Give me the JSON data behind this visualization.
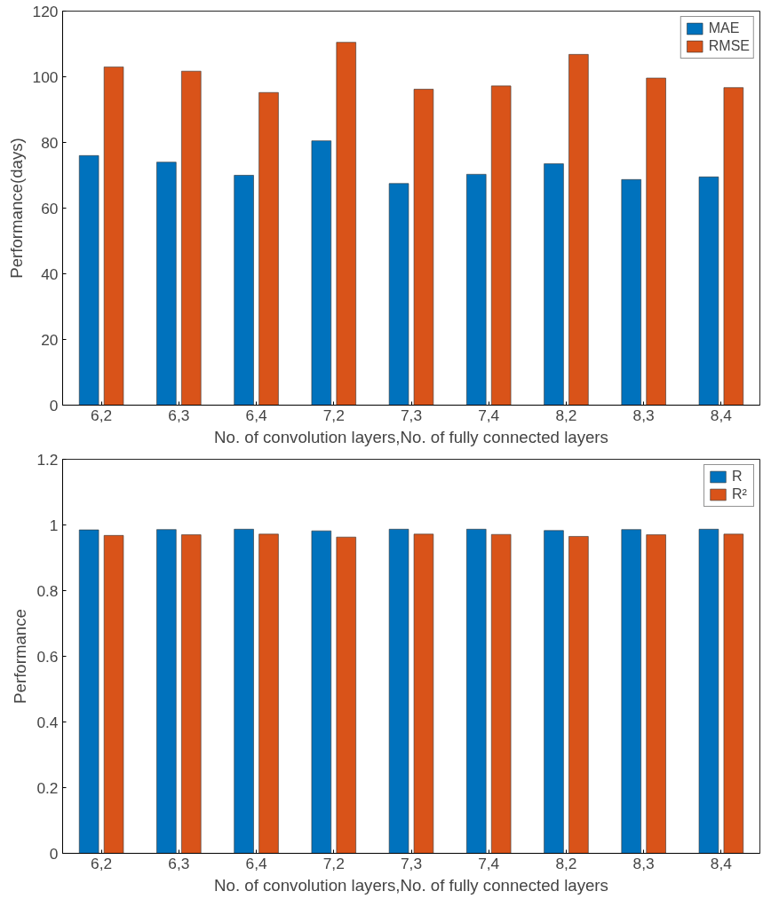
{
  "chart_data": [
    {
      "type": "bar",
      "xlabel": "No. of convolution layers,No. of fully connected layers",
      "ylabel": "Performance(days)",
      "categories": [
        "6,2",
        "6,3",
        "6,4",
        "7,2",
        "7,3",
        "7,4",
        "8,2",
        "8,3",
        "8,4"
      ],
      "series": [
        {
          "name": "MAE",
          "color": "#0072bd",
          "values": [
            76,
            74,
            70,
            80.5,
            67.5,
            70.3,
            73.5,
            68.7,
            69.5
          ]
        },
        {
          "name": "RMSE",
          "color": "#d95319",
          "values": [
            103,
            101.7,
            95.2,
            110.5,
            96.2,
            97.2,
            106.8,
            99.6,
            96.7
          ]
        }
      ],
      "ylim": [
        0,
        120
      ],
      "yticks": [
        0,
        20,
        40,
        60,
        80,
        100,
        120
      ],
      "grid": false,
      "legend": "top right"
    },
    {
      "type": "bar",
      "xlabel": "No. of convolution layers,No. of fully connected layers",
      "ylabel": "Performance",
      "categories": [
        "6,2",
        "6,3",
        "6,4",
        "7,2",
        "7,3",
        "7,4",
        "8,2",
        "8,3",
        "8,4"
      ],
      "series": [
        {
          "name": "R",
          "color": "#0072bd",
          "values": [
            0.985,
            0.986,
            0.987,
            0.982,
            0.987,
            0.987,
            0.983,
            0.986,
            0.987
          ]
        },
        {
          "name": "R²",
          "color": "#d95319",
          "values": [
            0.968,
            0.97,
            0.972,
            0.963,
            0.972,
            0.971,
            0.965,
            0.97,
            0.972
          ]
        }
      ],
      "ylim": [
        0,
        1.2
      ],
      "yticks": [
        0,
        0.2,
        0.4,
        0.6,
        0.8,
        1,
        1.2
      ],
      "grid": false,
      "legend": "top right"
    }
  ]
}
